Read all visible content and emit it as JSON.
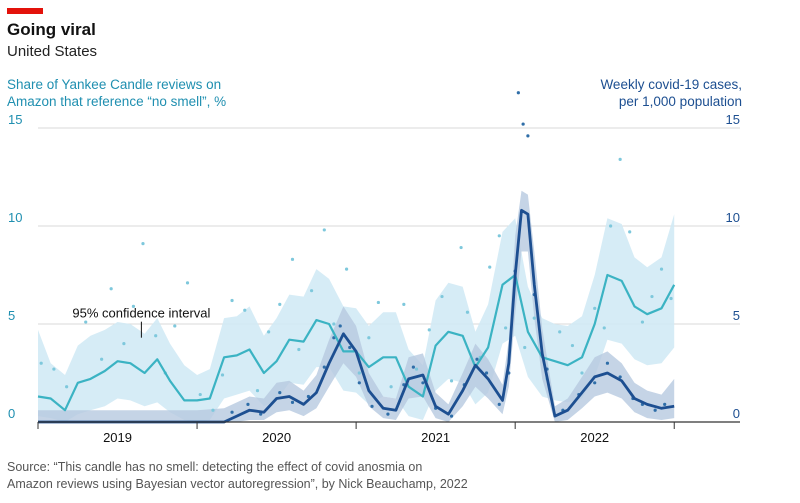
{
  "header": {
    "title": "Going viral",
    "subtitle": "United States",
    "left_axis_title": [
      "Share of Yankee Candle reviews on",
      "Amazon that reference “no smell”, %"
    ],
    "right_axis_title": [
      "Weekly covid-19 cases,",
      "per 1,000 population"
    ]
  },
  "footer": {
    "source": [
      "Source: “This candle has no smell: detecting the effect of covid anosmia on",
      "Amazon reviews using Bayesian vector autoregression”, by Nick Beauchamp, 2022"
    ]
  },
  "chart_data": {
    "type": "line",
    "x_axis": {
      "unit": "year",
      "range": [
        2018.5,
        2022.75
      ],
      "tick_labels": [
        "2019",
        "2020",
        "2021",
        "2022"
      ],
      "tick_positions": [
        2019.0,
        2020.0,
        2021.0,
        2022.0
      ]
    },
    "y_left": {
      "range": [
        0,
        15
      ],
      "ticks": [
        0,
        5,
        10,
        15
      ],
      "tick_labels": [
        "0",
        "5",
        "10",
        "15"
      ]
    },
    "y_right": {
      "range": [
        0,
        15
      ],
      "ticks": [
        0,
        5,
        10,
        15
      ],
      "tick_labels": [
        "0",
        "5",
        "10",
        "15"
      ]
    },
    "grid": true,
    "annotations": [
      {
        "text": "95% confidence interval",
        "x": 2019.15,
        "y": 4.2
      }
    ],
    "colors": {
      "no_smell": "#3bb3c3",
      "no_smell_band": "#cfe9f4",
      "covid": "#1d4f91",
      "covid_band": "#b6c9e0",
      "points_light": "#7ec8dc",
      "points_dark": "#2f6ea8"
    },
    "series": [
      {
        "id": "no-smell-share",
        "x": [
          2018.5,
          2018.58,
          2018.67,
          2018.75,
          2018.83,
          2018.92,
          2019.0,
          2019.08,
          2019.17,
          2019.25,
          2019.33,
          2019.42,
          2019.5,
          2019.58,
          2019.67,
          2019.75,
          2019.83,
          2019.92,
          2020.0,
          2020.08,
          2020.17,
          2020.25,
          2020.33,
          2020.42,
          2020.5,
          2020.58,
          2020.67,
          2020.75,
          2020.83,
          2020.92,
          2021.0,
          2021.08,
          2021.17,
          2021.25,
          2021.33,
          2021.42,
          2021.5,
          2021.58,
          2021.67,
          2021.75,
          2021.83,
          2021.92,
          2022.0,
          2022.08,
          2022.17,
          2022.25,
          2022.33,
          2022.42,
          2022.5
        ],
        "values": [
          1.3,
          1.2,
          0.6,
          2.0,
          2.2,
          2.6,
          3.1,
          3.0,
          2.5,
          3.2,
          2.1,
          1.1,
          1.1,
          1.2,
          3.3,
          3.4,
          3.7,
          2.5,
          3.1,
          4.2,
          4.1,
          5.2,
          5.0,
          3.6,
          3.6,
          2.8,
          3.3,
          3.3,
          1.8,
          1.3,
          3.9,
          4.6,
          4.4,
          2.8,
          3.8,
          7.0,
          7.5,
          4.6,
          3.3,
          3.1,
          2.9,
          3.3,
          5.0,
          7.5,
          7.2,
          5.9,
          5.5,
          5.8,
          7.0
        ],
        "band_low": [
          0.3,
          0.2,
          0.0,
          0.4,
          0.6,
          0.8,
          1.2,
          1.1,
          0.8,
          1.0,
          0.5,
          0.1,
          0.0,
          0.1,
          1.2,
          1.4,
          1.6,
          0.8,
          1.1,
          2.0,
          1.9,
          2.8,
          2.8,
          1.6,
          1.5,
          0.9,
          1.3,
          1.2,
          0.3,
          0.1,
          1.6,
          2.2,
          2.0,
          0.9,
          1.5,
          4.0,
          4.4,
          2.3,
          1.3,
          1.1,
          1.0,
          1.2,
          2.3,
          4.2,
          4.0,
          3.2,
          2.9,
          3.0,
          3.8
        ],
        "band_high": [
          4.7,
          3.0,
          2.4,
          3.9,
          4.4,
          4.7,
          5.1,
          5.0,
          4.5,
          5.3,
          4.0,
          2.9,
          2.4,
          2.7,
          5.3,
          5.4,
          5.9,
          4.4,
          5.3,
          6.5,
          6.4,
          7.8,
          7.3,
          5.9,
          5.8,
          4.9,
          5.6,
          5.6,
          3.7,
          2.9,
          6.2,
          7.1,
          6.9,
          4.6,
          6.0,
          9.7,
          10.4,
          6.9,
          5.3,
          5.0,
          4.9,
          5.4,
          7.5,
          10.4,
          10.1,
          8.4,
          7.9,
          8.4,
          10.6
        ]
      },
      {
        "id": "covid-cases",
        "x": [
          2018.5,
          2018.75,
          2019.0,
          2019.25,
          2019.5,
          2019.67,
          2019.75,
          2019.83,
          2019.92,
          2020.0,
          2020.08,
          2020.17,
          2020.25,
          2020.33,
          2020.42,
          2020.5,
          2020.58,
          2020.67,
          2020.75,
          2020.83,
          2020.92,
          2021.0,
          2021.08,
          2021.17,
          2021.25,
          2021.33,
          2021.42,
          2021.46,
          2021.5,
          2021.54,
          2021.58,
          2021.62,
          2021.67,
          2021.75,
          2021.83,
          2021.92,
          2022.0,
          2022.08,
          2022.17,
          2022.25,
          2022.33,
          2022.42,
          2022.5
        ],
        "values": [
          0.0,
          0.0,
          0.0,
          0.0,
          0.0,
          0.0,
          0.3,
          0.6,
          0.5,
          1.2,
          1.3,
          0.9,
          1.5,
          3.0,
          4.5,
          3.6,
          1.6,
          0.7,
          0.6,
          2.2,
          2.4,
          0.8,
          0.4,
          1.6,
          2.9,
          2.2,
          1.1,
          3.0,
          7.5,
          10.8,
          10.6,
          7.0,
          3.5,
          0.3,
          0.6,
          1.5,
          2.3,
          2.5,
          2.1,
          1.2,
          0.9,
          0.7,
          0.8
        ],
        "band_low": [
          0.0,
          0.0,
          0.0,
          0.0,
          0.0,
          0.0,
          0.0,
          0.1,
          0.1,
          0.5,
          0.6,
          0.3,
          0.7,
          1.8,
          3.0,
          2.3,
          0.8,
          0.2,
          0.1,
          1.2,
          1.3,
          0.2,
          0.0,
          0.8,
          1.8,
          1.2,
          0.4,
          1.8,
          5.5,
          8.7,
          8.7,
          5.3,
          2.2,
          0.0,
          0.1,
          0.7,
          1.3,
          1.5,
          1.2,
          0.5,
          0.2,
          0.1,
          0.2
        ],
        "band_high": [
          0.6,
          0.6,
          0.6,
          0.6,
          0.6,
          0.7,
          1.0,
          1.3,
          1.2,
          2.0,
          2.1,
          1.6,
          2.4,
          4.2,
          5.9,
          4.9,
          2.5,
          1.3,
          1.2,
          3.3,
          3.5,
          1.5,
          0.9,
          2.5,
          4.0,
          3.2,
          1.9,
          4.2,
          9.5,
          11.8,
          11.6,
          8.7,
          4.8,
          0.8,
          1.2,
          2.3,
          3.3,
          3.6,
          3.0,
          2.0,
          1.6,
          1.4,
          2.2
        ]
      }
    ],
    "scatter_light": {
      "x": [
        2018.52,
        2018.6,
        2018.68,
        2018.8,
        2018.9,
        2018.96,
        2019.04,
        2019.1,
        2019.16,
        2019.24,
        2019.3,
        2019.36,
        2019.44,
        2019.52,
        2019.6,
        2019.66,
        2019.72,
        2019.8,
        2019.88,
        2019.95,
        2020.02,
        2020.1,
        2020.14,
        2020.22,
        2020.3,
        2020.36,
        2020.44,
        2020.52,
        2020.58,
        2020.64,
        2020.72,
        2020.8,
        2020.88,
        2020.96,
        2021.04,
        2021.1,
        2021.16,
        2021.2,
        2021.28,
        2021.34,
        2021.4,
        2021.44,
        2021.5,
        2021.56,
        2021.62,
        2021.7,
        2021.78,
        2021.86,
        2021.92,
        2022.0,
        2022.06,
        2022.1,
        2022.16,
        2022.22,
        2022.3,
        2022.36,
        2022.42,
        2022.48
      ],
      "values": [
        3.0,
        2.7,
        1.8,
        5.1,
        3.2,
        6.8,
        4.0,
        5.9,
        9.1,
        4.4,
        2.5,
        4.9,
        7.1,
        1.4,
        0.6,
        2.4,
        6.2,
        5.7,
        1.6,
        4.6,
        6.0,
        8.3,
        3.7,
        6.7,
        9.8,
        5.0,
        7.8,
        2.5,
        4.3,
        6.1,
        1.8,
        6.0,
        2.7,
        4.7,
        6.4,
        2.1,
        8.9,
        5.6,
        3.3,
        7.9,
        9.5,
        4.8,
        7.3,
        3.8,
        5.3,
        2.2,
        4.6,
        3.9,
        2.5,
        5.8,
        4.8,
        10.0,
        13.4,
        9.7,
        5.1,
        6.4,
        7.8,
        6.3
      ]
    },
    "scatter_dark": {
      "x": [
        2019.72,
        2019.82,
        2019.9,
        2020.02,
        2020.1,
        2020.2,
        2020.3,
        2020.36,
        2020.4,
        2020.46,
        2020.52,
        2020.6,
        2020.7,
        2020.8,
        2020.86,
        2020.92,
        2021.0,
        2021.1,
        2021.18,
        2021.26,
        2021.32,
        2021.4,
        2021.46,
        2021.5,
        2021.52,
        2021.55,
        2021.58,
        2021.62,
        2021.7,
        2021.8,
        2021.9,
        2022.0,
        2022.08,
        2022.16,
        2022.24,
        2022.3,
        2022.38,
        2022.44
      ],
      "values": [
        0.5,
        0.9,
        0.4,
        1.5,
        1.0,
        1.3,
        2.8,
        4.3,
        4.9,
        3.8,
        2.0,
        0.8,
        0.4,
        1.9,
        2.8,
        2.0,
        0.7,
        0.3,
        1.9,
        3.2,
        2.5,
        0.9,
        2.5,
        7.7,
        16.8,
        15.2,
        14.6,
        6.5,
        2.7,
        0.6,
        1.4,
        2.0,
        3.0,
        2.3,
        1.2,
        0.9,
        0.6,
        0.9
      ]
    }
  }
}
